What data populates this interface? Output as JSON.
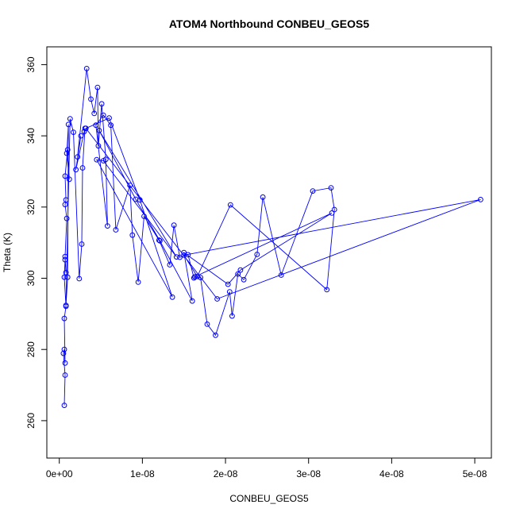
{
  "chart_data": {
    "type": "line",
    "title": "ATOM4 Northbound CONBEU_GEOS5",
    "xlabel": "CONBEU_GEOS5",
    "ylabel": "Theta (K)",
    "xlim": [
      -1.5e-09,
      5.2e-08
    ],
    "ylim": [
      249.5,
      365
    ],
    "x_ticks": [
      0,
      1e-08,
      2e-08,
      3e-08,
      4e-08,
      5e-08
    ],
    "x_tick_labels": [
      "0e+00",
      "1e-08",
      "2e-08",
      "3e-08",
      "4e-08",
      "5e-08"
    ],
    "y_ticks": [
      260,
      280,
      300,
      320,
      340,
      360
    ],
    "y_tick_labels": [
      "260",
      "280",
      "300",
      "320",
      "340",
      "360"
    ],
    "grid": false,
    "series_color": "#0000ff",
    "series": [
      {
        "x": [
          6e-10,
          7e-10,
          5e-10,
          6e-10,
          7e-10,
          6e-10,
          8e-10,
          6e-10,
          7e-10,
          8e-10,
          7e-10,
          9e-10,
          7e-10,
          8e-10,
          7e-10,
          1e-09,
          1.2e-09,
          9e-10,
          1.1e-09,
          1e-09,
          8e-10,
          1.3e-09,
          1.7e-09,
          2.4e-09,
          2.7e-09,
          2.8e-09,
          3.1e-09,
          3e-09,
          2e-09,
          2.6e-09,
          2.2e-09,
          3.3e-09,
          3.8e-09,
          4.2e-09,
          4.6e-09,
          4.7e-09,
          5.1e-09,
          5.6e-09,
          5.8e-09,
          4.4e-09,
          5.3e-09,
          6.2e-09,
          6.8e-09,
          8.5e-09,
          8.8e-09,
          9.5e-09,
          1.02e-08,
          1.2e-08,
          1.33e-08,
          1.38e-08,
          1.45e-08,
          1.55e-08,
          1.62e-08,
          1.7e-08,
          1.78e-08,
          1.88e-08,
          2.05e-08,
          2.08e-08,
          2.15e-08,
          2.22e-08,
          2.38e-08,
          2.45e-08,
          2.67e-08,
          3.05e-08,
          3.27e-08,
          3.31e-08,
          3.22e-08,
          2.06e-08,
          1.66e-08,
          1.5e-08,
          5.07e-08,
          1.9e-08,
          3.2e-09,
          6e-09,
          9.7e-09,
          1.36e-08,
          4.5e-09,
          5.3e-09,
          1.41e-08,
          4.8e-09,
          9.2e-09,
          1.21e-08,
          1.6e-08,
          1.5e-08,
          2.03e-08,
          2.18e-08,
          3.28e-08,
          1.63e-08
        ],
        "y": [
          264.3,
          272.8,
          278.9,
          280.0,
          276.2,
          288.7,
          292.1,
          300.3,
          305.2,
          301.6,
          306.1,
          316.8,
          320.7,
          322.0,
          328.7,
          336.1,
          327.8,
          335.1,
          343.2,
          300.3,
          292.4,
          344.8,
          341.0,
          299.9,
          309.6,
          331.0,
          342.1,
          341.2,
          330.5,
          340.0,
          334.1,
          358.9,
          350.3,
          346.3,
          353.6,
          337.2,
          349.0,
          333.4,
          314.7,
          343.0,
          345.8,
          343.0,
          313.6,
          326.1,
          312.1,
          298.9,
          317.4,
          310.7,
          303.8,
          314.9,
          305.9,
          306.6,
          300.1,
          300.2,
          287.1,
          284.0,
          296.2,
          289.4,
          301.2,
          299.6,
          306.7,
          322.8,
          300.9,
          324.5,
          325.4,
          319.3,
          296.8,
          320.6,
          300.5,
          306.5,
          322.1,
          294.2,
          342.1,
          345.0,
          322.0,
          294.7,
          333.3,
          333.0,
          306.0,
          341.5,
          322.2,
          310.5,
          293.6,
          307.2,
          298.3,
          302.3,
          318.3,
          300.4
        ]
      }
    ]
  }
}
